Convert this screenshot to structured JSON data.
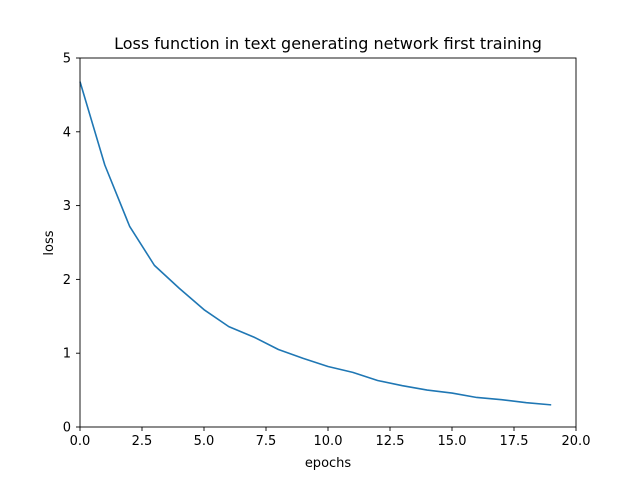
{
  "chart_data": {
    "type": "line",
    "title": "Loss function in text generating network first training",
    "xlabel": "epochs",
    "ylabel": "loss",
    "xlim": [
      0,
      20
    ],
    "ylim": [
      0,
      5
    ],
    "xticks": [
      0,
      2.5,
      5,
      7.5,
      10,
      12.5,
      15,
      17.5,
      20
    ],
    "xtick_labels": [
      "0.0",
      "2.5",
      "5.0",
      "7.5",
      "10.0",
      "12.5",
      "15.0",
      "17.5",
      "20.0"
    ],
    "yticks": [
      0,
      1,
      2,
      3,
      4,
      5
    ],
    "ytick_labels": [
      "0",
      "1",
      "2",
      "3",
      "4",
      "5"
    ],
    "grid": false,
    "line_color": "#1f77b4",
    "series": [
      {
        "x": [
          0,
          1,
          2,
          3,
          4,
          5,
          6,
          7,
          8,
          9,
          10,
          11,
          12,
          13,
          14,
          15,
          16,
          17,
          18,
          19
        ],
        "values": [
          4.68,
          3.55,
          2.72,
          2.19,
          1.88,
          1.59,
          1.36,
          1.22,
          1.05,
          0.93,
          0.82,
          0.74,
          0.63,
          0.56,
          0.5,
          0.46,
          0.4,
          0.37,
          0.33,
          0.3
        ]
      }
    ]
  }
}
